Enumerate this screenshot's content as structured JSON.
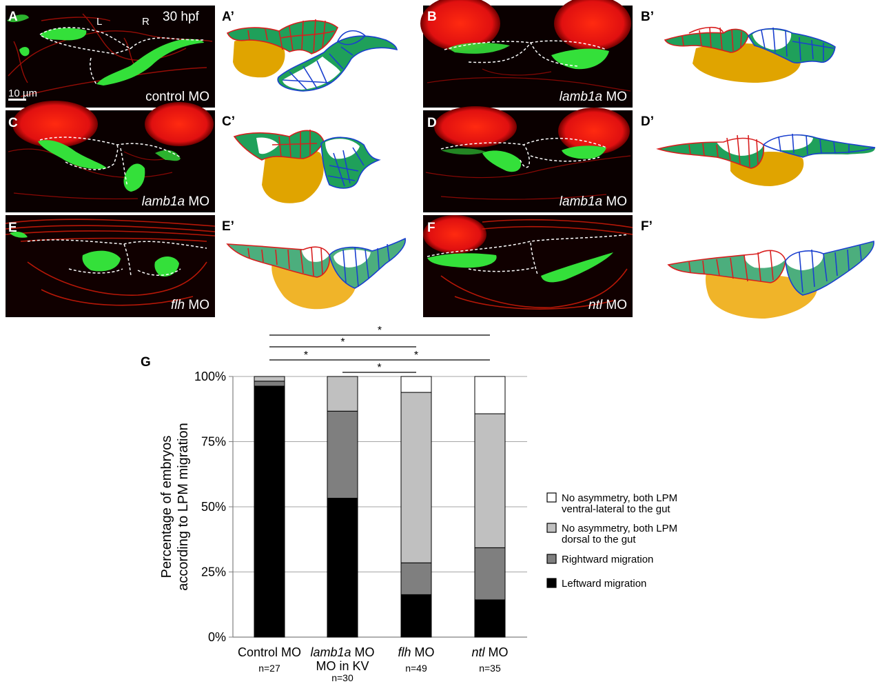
{
  "panels": {
    "A": {
      "letter": "A",
      "label_pre": "",
      "label_italic": "",
      "label_post": "control MO",
      "left_marker": "L",
      "right_marker": "R",
      "stage": "30 hpf",
      "scale": "10 µm"
    },
    "A_prime": {
      "letter": "A’"
    },
    "B": {
      "letter": "B",
      "label_pre": "",
      "label_italic": "lamb1a",
      "label_post": " MO"
    },
    "B_prime": {
      "letter": "B’"
    },
    "C": {
      "letter": "C",
      "label_pre": "",
      "label_italic": "lamb1a",
      "label_post": " MO"
    },
    "C_prime": {
      "letter": "C’"
    },
    "D": {
      "letter": "D",
      "label_pre": "",
      "label_italic": "lamb1a",
      "label_post": " MO"
    },
    "D_prime": {
      "letter": "D’"
    },
    "E": {
      "letter": "E",
      "label_pre": "",
      "label_italic": "flh",
      "label_post": " MO"
    },
    "E_prime": {
      "letter": "E’"
    },
    "F": {
      "letter": "F",
      "label_pre": "",
      "label_italic": "ntl",
      "label_post": " MO"
    },
    "F_prime": {
      "letter": "F’"
    }
  },
  "colors": {
    "micrograph_bg": "#0a0000",
    "red_signal": "#e01010",
    "green_signal": "#34e03a",
    "left_lpm_outline": "#d81e1e",
    "right_lpm_outline": "#1a3fcf",
    "lpm_fill": "#1fa05a",
    "gut_fill": "#e0a400",
    "leftward": "#000000",
    "rightward": "#7f7f7f",
    "dorsal": "#c0c0c0",
    "ventral": "#ffffff"
  },
  "chart_panel_letter": "G",
  "chart_data": {
    "type": "bar",
    "stacked": true,
    "ylabel_line1": "Percentage of embryos",
    "ylabel_line2": "according to LPM migration",
    "yticks": [
      "0%",
      "25%",
      "50%",
      "75%",
      "100%"
    ],
    "ylim": [
      0,
      100
    ],
    "grid": true,
    "legend_position": "right",
    "categories": [
      {
        "label_italic": "",
        "label_post": "Control MO",
        "line2": "",
        "n": "n=27"
      },
      {
        "label_italic": "lamb1a",
        "label_post": " MO",
        "line2": "MO in KV",
        "n": "n=30"
      },
      {
        "label_italic": "flh",
        "label_post": " MO",
        "line2": "",
        "n": "n=49"
      },
      {
        "label_italic": "ntl",
        "label_post": " MO",
        "line2": "",
        "n": "n=35"
      }
    ],
    "series": [
      {
        "name": "Leftward migration",
        "color": "#000000",
        "values": [
          96.3,
          53.3,
          16.3,
          14.3
        ]
      },
      {
        "name": "Rightward migration",
        "color": "#7f7f7f",
        "values": [
          1.9,
          33.4,
          12.2,
          20.0
        ]
      },
      {
        "name_line1": "No asymmetry, both LPM",
        "name_line2": "dorsal to the gut",
        "color": "#c0c0c0",
        "values": [
          1.8,
          13.3,
          65.4,
          51.4
        ]
      },
      {
        "name_line1": "No asymmetry, both LPM",
        "name_line2": "ventral-lateral to the gut",
        "color": "#ffffff",
        "values": [
          0,
          0,
          6.1,
          14.3
        ]
      }
    ],
    "significance": [
      {
        "from": 0,
        "to": 3,
        "label": "*"
      },
      {
        "from": 0,
        "to": 2,
        "label": "*"
      },
      {
        "from": 0,
        "to": 1,
        "label": "*"
      },
      {
        "from": 1,
        "to": 3,
        "label": "*"
      },
      {
        "from": 1,
        "to": 2,
        "label": "*"
      }
    ]
  }
}
